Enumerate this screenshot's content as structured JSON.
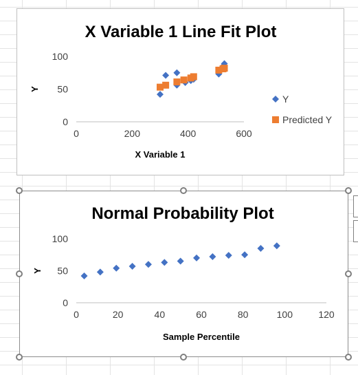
{
  "chart_data": [
    {
      "type": "scatter",
      "title": "X Variable 1 Line Fit  Plot",
      "xlabel": "X Variable 1",
      "ylabel": "Y",
      "xlim": [
        0,
        600
      ],
      "ylim": [
        0,
        100
      ],
      "xticks": [
        0,
        200,
        400,
        600
      ],
      "yticks": [
        0,
        50,
        100
      ],
      "grid": false,
      "legend": "right",
      "series": [
        {
          "name": "Y",
          "color": "#4472C4",
          "marker": "diamond",
          "points": [
            [
              300,
              42
            ],
            [
              320,
              71
            ],
            [
              360,
              56
            ],
            [
              360,
              75
            ],
            [
              390,
              60
            ],
            [
              410,
              63
            ],
            [
              420,
              65
            ],
            [
              510,
              73
            ],
            [
              525,
              85
            ],
            [
              530,
              89
            ]
          ]
        },
        {
          "name": "Predicted Y",
          "color": "#ED7D31",
          "marker": "square",
          "points": [
            [
              300,
              53
            ],
            [
              320,
              56
            ],
            [
              360,
              61
            ],
            [
              385,
              64
            ],
            [
              410,
              67
            ],
            [
              420,
              69
            ],
            [
              510,
              79
            ],
            [
              525,
              81
            ],
            [
              530,
              82
            ]
          ]
        }
      ]
    },
    {
      "type": "scatter",
      "title": "Normal Probability Plot",
      "xlabel": "Sample Percentile",
      "ylabel": "Y",
      "xlim": [
        0,
        120
      ],
      "ylim": [
        0,
        100
      ],
      "xticks": [
        0,
        20,
        40,
        60,
        80,
        100,
        120
      ],
      "yticks": [
        0,
        50,
        100
      ],
      "grid": false,
      "series": [
        {
          "color": "#4472C4",
          "marker": "diamond",
          "points": [
            [
              3.8,
              42
            ],
            [
              11.5,
              48
            ],
            [
              19.2,
              54
            ],
            [
              26.9,
              57
            ],
            [
              34.6,
              60
            ],
            [
              42.3,
              63
            ],
            [
              50,
              65
            ],
            [
              57.7,
              70
            ],
            [
              65.4,
              72
            ],
            [
              73.1,
              74
            ],
            [
              80.8,
              75
            ],
            [
              88.5,
              85
            ],
            [
              96.2,
              89
            ]
          ]
        }
      ]
    }
  ]
}
